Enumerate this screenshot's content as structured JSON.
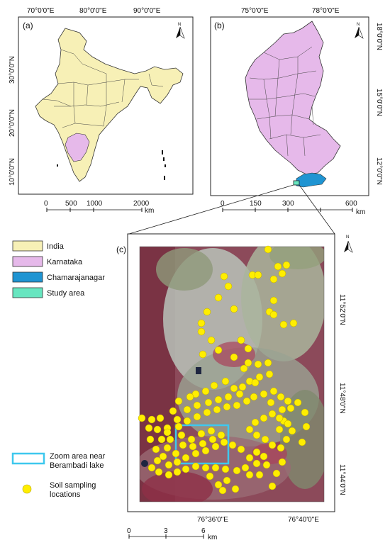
{
  "panel_a": {
    "label": "(a)",
    "lon_ticks": [
      "70°0'0\"E",
      "80°0'0\"E",
      "90°0'0\"E"
    ],
    "lat_ticks": [
      "30°0'0\"N",
      "20°0'0\"N",
      "10°0'0\"N"
    ],
    "scale_ticks": [
      "0",
      "500",
      "1000",
      "2000"
    ],
    "scale_unit": "km",
    "north": "N"
  },
  "panel_b": {
    "label": "(b)",
    "lon_ticks": [
      "75°0'0\"E",
      "78°0'0\"E"
    ],
    "lat_ticks": [
      "18°0'0\"N",
      "15°0'0\"N",
      "12°0'0\"N"
    ],
    "scale_ticks": [
      "0",
      "150",
      "300",
      "600"
    ],
    "scale_unit": "km",
    "north": "N"
  },
  "panel_c": {
    "label": "(c)",
    "lon_ticks": [
      "76°36'0\"E",
      "76°40'0\"E"
    ],
    "lat_ticks": [
      "11°52'0\"N",
      "11°48'0\"N",
      "11°44'0\"N"
    ],
    "scale_ticks": [
      "0",
      "3",
      "6"
    ],
    "scale_unit": "km",
    "north": "N"
  },
  "legend": [
    {
      "label": "India",
      "color": "#f7f0b6"
    },
    {
      "label": "Karnataka",
      "color": "#e6b9ea"
    },
    {
      "label": "Chamarajanagar",
      "color": "#1f94d2"
    },
    {
      "label": "Study area",
      "color": "#67e6c0"
    }
  ],
  "legend2": {
    "zoom_line1": "Zoom area near",
    "zoom_line2": "Berambadi lake",
    "soil_line1": "Soil sampling",
    "soil_line2": "locations",
    "zoom_color": "#3ec8ee",
    "point_color": "#ffee00"
  }
}
